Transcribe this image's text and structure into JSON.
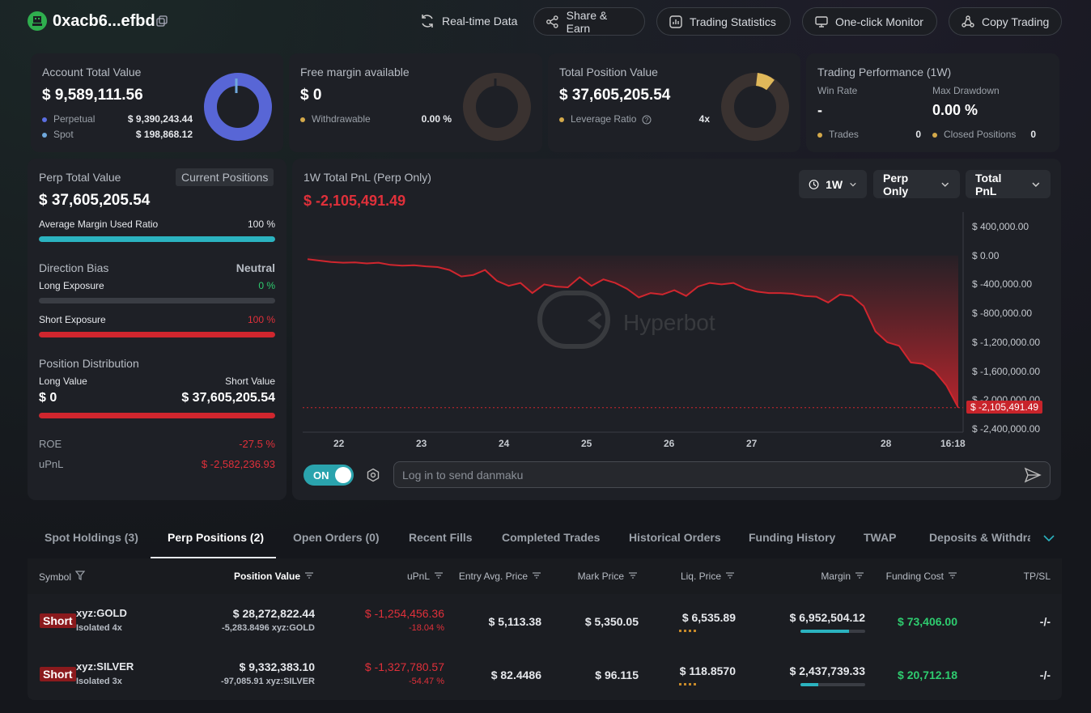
{
  "header": {
    "address": "0xacb6...efbd",
    "buttons": {
      "realtime": "Real-time Data",
      "share": "Share & Earn",
      "stats": "Trading Statistics",
      "monitor": "One-click Monitor",
      "copy": "Copy Trading"
    }
  },
  "account": {
    "title": "Account Total Value",
    "value": "$ 9,589,111.56",
    "perp_label": "Perpetual",
    "perp_value": "$ 9,390,243.44",
    "spot_label": "Spot",
    "spot_value": "$ 198,868.12"
  },
  "margin": {
    "title": "Free margin available",
    "value": "$ 0",
    "withdraw_label": "Withdrawable",
    "withdraw_value": "0.00 %"
  },
  "position": {
    "title": "Total Position Value",
    "value": "$ 37,605,205.54",
    "leverage_label": "Leverage Ratio",
    "leverage_value": "4x"
  },
  "performance": {
    "title": "Trading Performance (1W)",
    "winrate_label": "Win Rate",
    "winrate_value": "-",
    "drawdown_label": "Max Drawdown",
    "drawdown_value": "0.00 %",
    "trades_label": "Trades",
    "trades_value": "0",
    "closed_label": "Closed Positions",
    "closed_value": "0"
  },
  "perp": {
    "title": "Perp Total Value",
    "badge": "Current Positions",
    "value": "$ 37,605,205.54",
    "margin_label": "Average Margin Used Ratio",
    "margin_value": "100 %",
    "margin_ratio": 1.0,
    "bias_label": "Direction Bias",
    "bias_value": "Neutral",
    "long_label": "Long Exposure",
    "long_value": "0 %",
    "long_ratio": 0,
    "short_label": "Short Exposure",
    "short_value": "100 %",
    "short_ratio": 1.0,
    "dist_label": "Position Distribution",
    "long_value_label": "Long Value",
    "short_value_label": "Short Value",
    "long_amount": "$ 0",
    "short_amount": "$ 37,605,205.54",
    "short_dist_ratio": 1.0,
    "roe_label": "ROE",
    "roe_value": "-27.5 %",
    "upnl_label": "uPnL",
    "upnl_value": "$ -2,582,236.93"
  },
  "pnl": {
    "title": "1W Total PnL (Perp Only)",
    "value": "$ -2,105,491.49",
    "period": "1W",
    "scope": "Perp Only",
    "metric": "Total PnL",
    "watermark": "Hyperbot",
    "current_label": "$ -2,105,491.49",
    "danmaku_toggle": "ON",
    "danmaku_placeholder": "Log in to send danmaku"
  },
  "chart_data": {
    "type": "area",
    "y_ticks": [
      "$ 400,000.00",
      "$ 0.00",
      "$ -400,000.00",
      "$ -800,000.00",
      "$ -1,200,000.00",
      "$ -1,600,000.00",
      "$ -2,000,000.00",
      "$ -2,400,000.00"
    ],
    "x_ticks": [
      "22",
      "23",
      "24",
      "25",
      "26",
      "27",
      "28",
      "16:18"
    ],
    "ylim": [
      -2400000,
      400000
    ],
    "values": [
      -50000,
      -70000,
      -90000,
      -100000,
      -95000,
      -110000,
      -100000,
      -130000,
      -140000,
      -135000,
      -150000,
      -160000,
      -200000,
      -290000,
      -270000,
      -200000,
      -350000,
      -420000,
      -380000,
      -520000,
      -400000,
      -430000,
      -440000,
      -300000,
      -420000,
      -330000,
      -380000,
      -460000,
      -580000,
      -520000,
      -540000,
      -480000,
      -560000,
      -430000,
      -380000,
      -400000,
      -380000,
      -460000,
      -500000,
      -520000,
      -520000,
      -530000,
      -560000,
      -570000,
      -650000,
      -540000,
      -560000,
      -700000,
      -1050000,
      -1200000,
      -1250000,
      -1480000,
      -1500000,
      -1600000,
      -1800000,
      -2105491
    ],
    "line_color": "#d0262e"
  },
  "tabs": [
    "Spot Holdings (3)",
    "Perp Positions (2)",
    "Open Orders (0)",
    "Recent Fills",
    "Completed Trades",
    "Historical Orders",
    "Funding History",
    "TWAP",
    "Deposits & Withdraw"
  ],
  "table": {
    "headers": [
      "Symbol",
      "Position Value",
      "uPnL",
      "Entry Avg. Price",
      "Mark Price",
      "Liq. Price",
      "Margin",
      "Funding Cost",
      "TP/SL"
    ],
    "rows": [
      {
        "side": "Short",
        "symbol": "xyz:GOLD",
        "mode": "Isolated 4x",
        "value": "$ 28,272,822.44",
        "size": "-5,283.8496 xyz:GOLD",
        "upnl": "$ -1,254,456.36",
        "upnl_pct": "-18.04 %",
        "entry": "$ 5,113.38",
        "mark": "$ 5,350.05",
        "liq": "$ 6,535.89",
        "margin": "$ 6,952,504.12",
        "margin_ratio": 0.75,
        "funding": "$ 73,406.00",
        "tpsl": "-/-"
      },
      {
        "side": "Short",
        "symbol": "xyz:SILVER",
        "mode": "Isolated 3x",
        "value": "$ 9,332,383.10",
        "size": "-97,085.91 xyz:SILVER",
        "upnl": "$ -1,327,780.57",
        "upnl_pct": "-54.47 %",
        "entry": "$ 82.4486",
        "mark": "$ 96.115",
        "liq": "$ 118.8570",
        "margin": "$ 2,437,739.33",
        "margin_ratio": 0.28,
        "funding": "$ 20,712.18",
        "tpsl": "-/-"
      }
    ]
  }
}
